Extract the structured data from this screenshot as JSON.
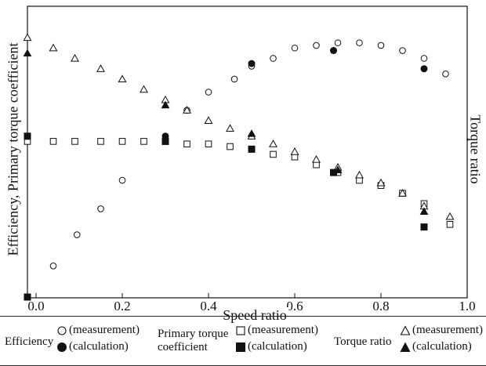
{
  "chart_data": {
    "type": "scatter",
    "xlabel": "Speed ratio",
    "ylabel_left": "Efficiency, Primary torque coefficient",
    "ylabel_right": "Torque ratio",
    "xlim": [
      -0.02,
      1.0
    ],
    "x_ticks": [
      "0.0",
      "0.2",
      "0.4",
      "0.6",
      "0.8",
      "1.0"
    ],
    "left_axis_ticks_labeled": false,
    "right_axis_ticks_labeled": false,
    "grid": false,
    "legend_position": "bottom",
    "series": [
      {
        "name": "Efficiency (measurement)",
        "marker": "circle-open",
        "points": [
          [
            0.04,
            0.12
          ],
          [
            0.095,
            0.24
          ],
          [
            0.15,
            0.34
          ],
          [
            0.2,
            0.45
          ],
          [
            0.35,
            0.72
          ],
          [
            0.4,
            0.79
          ],
          [
            0.46,
            0.84
          ],
          [
            0.5,
            0.89
          ],
          [
            0.55,
            0.92
          ],
          [
            0.6,
            0.96
          ],
          [
            0.65,
            0.97
          ],
          [
            0.7,
            0.98
          ],
          [
            0.75,
            0.98
          ],
          [
            0.8,
            0.97
          ],
          [
            0.85,
            0.95
          ],
          [
            0.9,
            0.92
          ],
          [
            0.95,
            0.86
          ]
        ]
      },
      {
        "name": "Efficiency (calculation)",
        "marker": "circle-filled",
        "points": [
          [
            0.3,
            0.62
          ],
          [
            0.5,
            0.9
          ],
          [
            0.69,
            0.95
          ],
          [
            0.9,
            0.88
          ]
        ]
      },
      {
        "name": "Primary torque coefficient (measurement)",
        "marker": "square-open",
        "points": [
          [
            -0.02,
            0.6
          ],
          [
            0.04,
            0.6
          ],
          [
            0.09,
            0.6
          ],
          [
            0.15,
            0.6
          ],
          [
            0.2,
            0.6
          ],
          [
            0.25,
            0.6
          ],
          [
            0.3,
            0.6
          ],
          [
            0.35,
            0.59
          ],
          [
            0.4,
            0.59
          ],
          [
            0.45,
            0.58
          ],
          [
            0.5,
            0.57
          ],
          [
            0.55,
            0.55
          ],
          [
            0.6,
            0.54
          ],
          [
            0.65,
            0.51
          ],
          [
            0.7,
            0.48
          ],
          [
            0.75,
            0.45
          ],
          [
            0.8,
            0.43
          ],
          [
            0.85,
            0.4
          ],
          [
            0.9,
            0.36
          ],
          [
            0.96,
            0.28
          ]
        ]
      },
      {
        "name": "Primary torque coefficient (calculation)",
        "marker": "square-filled",
        "points": [
          [
            -0.02,
            0.62
          ],
          [
            -0.02,
            0.0
          ],
          [
            0.3,
            0.6
          ],
          [
            0.5,
            0.57
          ],
          [
            0.69,
            0.48
          ],
          [
            0.9,
            0.27
          ]
        ]
      },
      {
        "name": "Torque ratio (measurement)",
        "marker": "triangle-open",
        "points": [
          [
            -0.02,
            1.0
          ],
          [
            0.04,
            0.96
          ],
          [
            0.09,
            0.92
          ],
          [
            0.15,
            0.88
          ],
          [
            0.2,
            0.84
          ],
          [
            0.25,
            0.8
          ],
          [
            0.3,
            0.76
          ],
          [
            0.35,
            0.72
          ],
          [
            0.4,
            0.68
          ],
          [
            0.45,
            0.65
          ],
          [
            0.5,
            0.62
          ],
          [
            0.55,
            0.59
          ],
          [
            0.6,
            0.56
          ],
          [
            0.65,
            0.53
          ],
          [
            0.7,
            0.5
          ],
          [
            0.75,
            0.47
          ],
          [
            0.8,
            0.44
          ],
          [
            0.85,
            0.4
          ],
          [
            0.9,
            0.35
          ],
          [
            0.96,
            0.31
          ]
        ]
      },
      {
        "name": "Torque ratio (calculation)",
        "marker": "triangle-filled",
        "points": [
          [
            -0.02,
            0.94
          ],
          [
            0.3,
            0.74
          ],
          [
            0.5,
            0.63
          ],
          [
            0.7,
            0.49
          ],
          [
            0.9,
            0.33
          ]
        ]
      }
    ]
  },
  "legend": {
    "efficiency_title": "Efficiency",
    "ptc_title_line1": "Primary torque",
    "ptc_title_line2": "coefficient",
    "torque_title": "Torque ratio",
    "measurement": "(measurement)",
    "calculation": "(calculation)"
  }
}
